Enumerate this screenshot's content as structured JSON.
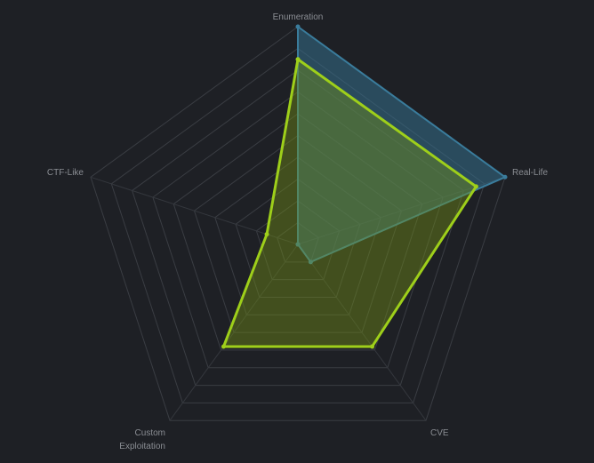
{
  "chart_data": {
    "type": "radar",
    "axes": [
      "Enumeration",
      "Real-Life",
      "CVE",
      "Custom Exploitation",
      "CTF-Like"
    ],
    "axis_labels": [
      [
        "Enumeration"
      ],
      [
        "Real-Life"
      ],
      [
        "CVE"
      ],
      [
        "Custom",
        "Exploitation"
      ],
      [
        "CTF-Like"
      ]
    ],
    "range": [
      0,
      10
    ],
    "grid_levels": 10,
    "series": [
      {
        "values": [
          10,
          10,
          1,
          0,
          0
        ],
        "color": "#3a7c9c",
        "fill": "rgba(53,112,140,0.55)"
      },
      {
        "values": [
          8.5,
          8.6,
          5.8,
          5.8,
          1.5
        ],
        "color": "#9ecf1a",
        "fill": "rgba(120,150,20,0.40)"
      }
    ]
  }
}
